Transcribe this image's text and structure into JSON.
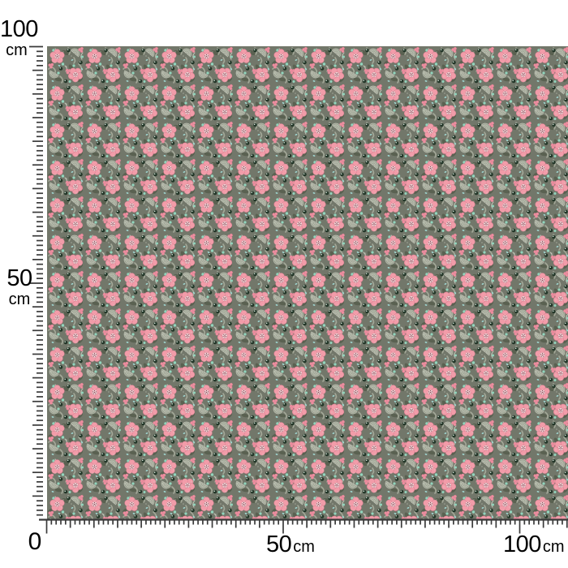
{
  "page": {
    "background": "#ffffff"
  },
  "ruler": {
    "unit": "cm",
    "tick_color": "#3a3a3a",
    "label_color": "#000000",
    "minor_tick_cm": 1,
    "major_tick_cm": 5,
    "labels": {
      "v100": {
        "number": "100",
        "unit": "cm"
      },
      "v50": {
        "number": "50",
        "unit": "cm"
      },
      "origin": {
        "number": "0"
      },
      "h50": {
        "number": "50",
        "unit": "cm"
      },
      "h100": {
        "number": "100",
        "unit": "cm"
      }
    }
  },
  "fabric": {
    "description": "Pink five-petal flowers with buds, dark berries, mint dots and pale curled fronds on a grey-green ground",
    "colors": {
      "bg": "#72776a",
      "foliage": "#565d4c",
      "curl": "#a3a898",
      "curlpale": "#bdc0b3",
      "fan": "#99a08f",
      "petal": "#f29ca9",
      "petaledge": "#d67f90",
      "center": "#f6d9da",
      "centerdot": "#8c4d5d",
      "bud": "#ee8fa0",
      "berry": "#243729",
      "berryhl": "#e3f0e5",
      "mint": "#92d5bd",
      "aqua": "#a2dbd6",
      "speck": "#d8dcd0"
    }
  }
}
